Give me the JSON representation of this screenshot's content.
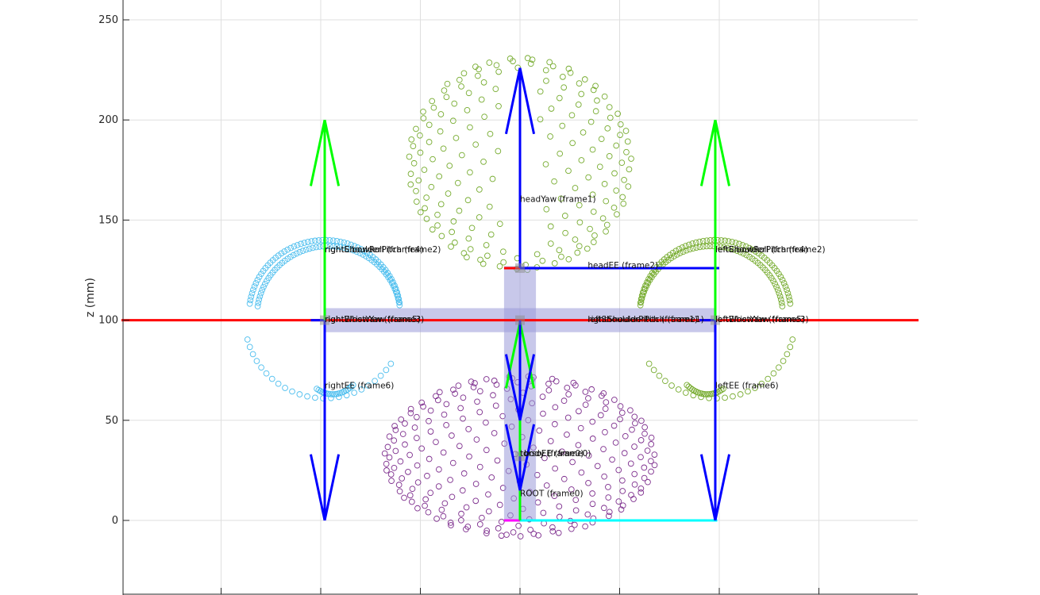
{
  "chart_data": {
    "type": "scatter",
    "title": "",
    "xlabel": "",
    "ylabel": "z (mm)",
    "xlim": [
      -200,
      200
    ],
    "ylim": [
      -37,
      260
    ],
    "yticks": [
      0,
      50,
      100,
      150,
      200,
      250
    ],
    "xticks_no_label": [
      -150,
      -100,
      -50,
      0,
      50,
      100,
      150
    ],
    "grid": true,
    "colors": {
      "head_points": "#77ac30",
      "right_arm_points": "#4dbeee",
      "left_arm_points": "#77ac30",
      "torso_points": "#7e2f8e",
      "x_axis": "#ff0000",
      "y_axis": "#0000ff",
      "z_axis": "#00ff00",
      "frame_box": "#9b9bd8",
      "magenta": "#ff00ff",
      "cyan": "#00ffff",
      "joint": "#8c8c8c"
    },
    "frame_labels": [
      {
        "text": "headYaw (frame1)",
        "x": 0,
        "y": 159
      },
      {
        "text": "headEE (frame2)",
        "x": 34,
        "y": 126
      },
      {
        "text": "rightShoulderPitch (frame2)",
        "x": -98,
        "y": 134
      },
      {
        "text": "rightElbowRoll (frame4)",
        "x": -98,
        "y": 134
      },
      {
        "text": "rightElbowYaw (frame3)",
        "x": -98,
        "y": 99
      },
      {
        "text": "rightWristYaw (frame5)",
        "x": -98,
        "y": 99
      },
      {
        "text": "rightEE (frame6)",
        "x": -98,
        "y": 66
      },
      {
        "text": "leftShoulderPitch (frame2)",
        "x": 98,
        "y": 134
      },
      {
        "text": "leftElbowRoll (frame4)",
        "x": 98,
        "y": 134
      },
      {
        "text": "leftElbowYaw (frame3)",
        "x": 98,
        "y": 99
      },
      {
        "text": "leftWristYaw (frame5)",
        "x": 98,
        "y": 99
      },
      {
        "text": "leftEE (frame6)",
        "x": 98,
        "y": 66
      },
      {
        "text": "leftShoulderPitch (frame1)",
        "x": 34,
        "y": 99
      },
      {
        "text": "rightShoulderPitch (frame1)",
        "x": 34,
        "y": 99
      },
      {
        "text": "torsoEE (frame0)",
        "x": 0,
        "y": 32
      },
      {
        "text": "body (frame0)",
        "x": 2,
        "y": 32
      },
      {
        "text": "ROOT (frame0)",
        "x": 0,
        "y": 12
      }
    ]
  }
}
